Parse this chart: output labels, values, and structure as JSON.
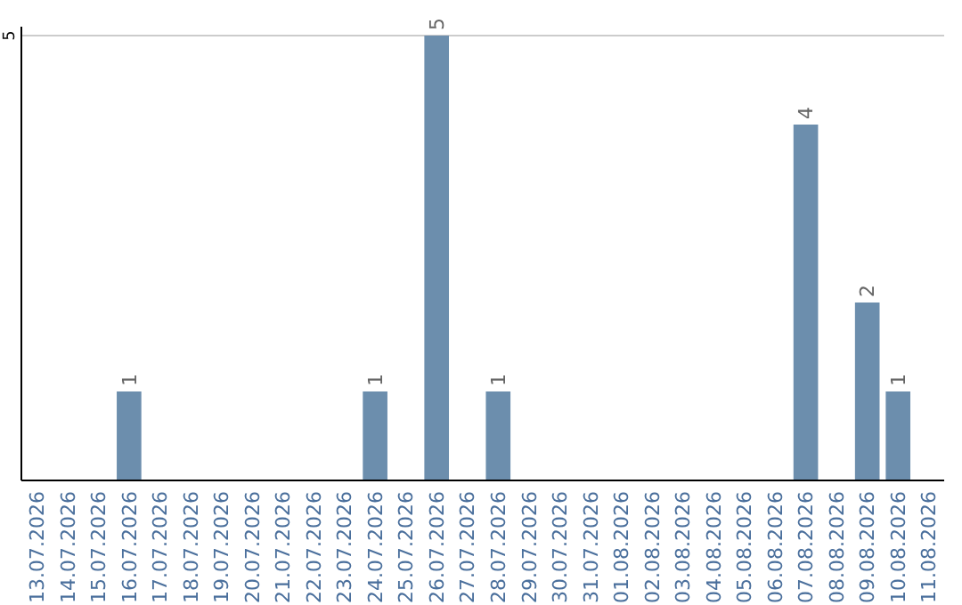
{
  "chart_data": {
    "type": "bar",
    "categories": [
      "13.07.2026",
      "14.07.2026",
      "15.07.2026",
      "16.07.2026",
      "17.07.2026",
      "18.07.2026",
      "19.07.2026",
      "20.07.2026",
      "21.07.2026",
      "22.07.2026",
      "23.07.2026",
      "24.07.2026",
      "25.07.2026",
      "26.07.2026",
      "27.07.2026",
      "28.07.2026",
      "29.07.2026",
      "30.07.2026",
      "31.07.2026",
      "01.08.2026",
      "02.08.2026",
      "03.08.2026",
      "04.08.2026",
      "05.08.2026",
      "06.08.2026",
      "07.08.2026",
      "08.08.2026",
      "09.08.2026",
      "10.08.2026",
      "11.08.2026"
    ],
    "values": [
      0,
      0,
      0,
      1,
      0,
      0,
      0,
      0,
      0,
      0,
      0,
      1,
      0,
      5,
      0,
      1,
      0,
      0,
      0,
      0,
      0,
      0,
      0,
      0,
      0,
      4,
      0,
      2,
      1,
      0
    ],
    "value_labels": [
      null,
      null,
      null,
      "1",
      null,
      null,
      null,
      null,
      null,
      null,
      null,
      "1",
      null,
      "5",
      null,
      "1",
      null,
      null,
      null,
      null,
      null,
      null,
      null,
      null,
      null,
      "4",
      null,
      "2",
      "1",
      null
    ],
    "color": "#6c8ead",
    "ylim": [
      0,
      5
    ],
    "yticks": [
      5
    ],
    "ref_lines": [
      {
        "axis": "y",
        "value": 5,
        "color": "#cccccc"
      }
    ]
  }
}
